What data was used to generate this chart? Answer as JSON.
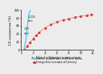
{
  "title": "",
  "ylabel": "CO conversion (%)",
  "xlabel": "Relative substrate surface area",
  "ylim": [
    0,
    100
  ],
  "xlim": [
    0,
    12
  ],
  "cyan_x": [
    0.5,
    0.7,
    0.9,
    1.05,
    1.2,
    1.35,
    1.5,
    1.55
  ],
  "cyan_y": [
    0,
    15,
    35,
    60,
    80,
    93,
    98,
    100
  ],
  "red_x": [
    0.5,
    1.0,
    1.5,
    2.0,
    2.5,
    3.0,
    4.0,
    5.0,
    6.0,
    7.0,
    8.0,
    9.0,
    10.0,
    11.0,
    11.8
  ],
  "red_y": [
    0,
    8,
    18,
    28,
    36,
    44,
    55,
    64,
    70,
    75,
    79,
    82,
    85,
    87,
    89
  ],
  "cyan_color": "#55d4f0",
  "red_color": "#e03030",
  "annotation_1200": "1,200\ncpsi",
  "annotation_400": "400\ncpsi",
  "ann_1200_x": 1.1,
  "ann_1200_y": 68,
  "ann_400_x": 0.55,
  "ann_400_y": 38,
  "legend1": "Effect of cell density (constant volume)",
  "legend2": "Strong effect (constant cell density)",
  "bg_color": "#ececec",
  "yticks": [
    0,
    20,
    40,
    60,
    80,
    100
  ],
  "xticks": [
    0,
    2,
    4,
    6,
    8,
    10,
    12
  ]
}
